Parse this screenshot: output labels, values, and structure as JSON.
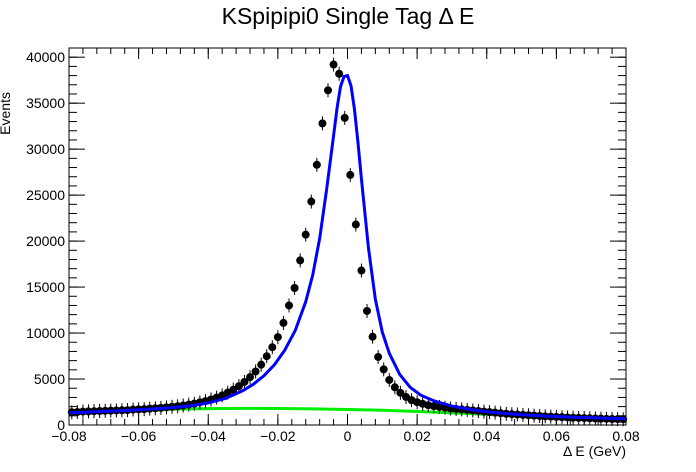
{
  "chart_data": {
    "type": "scatter",
    "title": "KSpipipi0 Single Tag Δ E",
    "xlabel": "Δ E (GeV)",
    "ylabel": "Events",
    "xlim": [
      -0.08,
      0.08
    ],
    "ylim": [
      0,
      41000
    ],
    "grid": false,
    "legend": "none",
    "x_ticks": [
      -0.08,
      -0.06,
      -0.04,
      -0.02,
      0,
      0.02,
      0.04,
      0.06,
      0.08
    ],
    "x_tick_labels": [
      "−0.08",
      "−0.06",
      "−0.04",
      "−0.02",
      "0",
      "0.02",
      "0.04",
      "0.06",
      "0.08"
    ],
    "y_ticks": [
      0,
      5000,
      10000,
      15000,
      20000,
      25000,
      30000,
      35000,
      40000
    ],
    "y_tick_labels": [
      "0",
      "5000",
      "10000",
      "15000",
      "20000",
      "25000",
      "30000",
      "35000",
      "40000"
    ],
    "series": [
      {
        "kind": "data-points",
        "color": "#000000",
        "x": [
          -0.0792,
          -0.0776,
          -0.076,
          -0.0744,
          -0.0728,
          -0.0712,
          -0.0696,
          -0.068,
          -0.0664,
          -0.0648,
          -0.0632,
          -0.0616,
          -0.06,
          -0.0584,
          -0.0568,
          -0.0552,
          -0.0536,
          -0.052,
          -0.0504,
          -0.0488,
          -0.0472,
          -0.0456,
          -0.044,
          -0.0424,
          -0.0408,
          -0.0392,
          -0.0376,
          -0.036,
          -0.0344,
          -0.0328,
          -0.0312,
          -0.0296,
          -0.028,
          -0.0264,
          -0.0248,
          -0.0232,
          -0.0216,
          -0.02,
          -0.0184,
          -0.0168,
          -0.0152,
          -0.0136,
          -0.012,
          -0.0104,
          -0.0088,
          -0.0072,
          -0.0056,
          -0.004,
          -0.0024,
          -0.0008,
          0.0008,
          0.0024,
          0.004,
          0.0056,
          0.0072,
          0.0088,
          0.0104,
          0.012,
          0.0136,
          0.0152,
          0.0168,
          0.0184,
          0.02,
          0.0216,
          0.0232,
          0.0248,
          0.0264,
          0.028,
          0.0296,
          0.0312,
          0.0328,
          0.0344,
          0.036,
          0.0376,
          0.0392,
          0.0408,
          0.0424,
          0.044,
          0.0456,
          0.0472,
          0.0488,
          0.0504,
          0.052,
          0.0536,
          0.0552,
          0.0568,
          0.0584,
          0.06,
          0.0616,
          0.0632,
          0.0648,
          0.0664,
          0.068,
          0.0696,
          0.0712,
          0.0728,
          0.0744,
          0.076,
          0.0776,
          0.0792
        ],
        "y": [
          1380,
          1420,
          1460,
          1480,
          1500,
          1520,
          1540,
          1560,
          1580,
          1600,
          1620,
          1680,
          1700,
          1720,
          1780,
          1820,
          1860,
          1920,
          1980,
          2040,
          2120,
          2220,
          2320,
          2460,
          2600,
          2780,
          2980,
          3220,
          3520,
          3840,
          4220,
          4680,
          5200,
          5820,
          6560,
          7480,
          8460,
          9560,
          11100,
          13000,
          14900,
          17900,
          20700,
          24300,
          28300,
          32800,
          36400,
          39200,
          38200,
          33400,
          27200,
          21800,
          16800,
          12400,
          9600,
          7400,
          6050,
          4900,
          4100,
          3500,
          3050,
          2700,
          2480,
          2300,
          2150,
          2050,
          1960,
          1880,
          1800,
          1750,
          1700,
          1640,
          1580,
          1520,
          1460,
          1400,
          1340,
          1280,
          1220,
          1180,
          1140,
          1100,
          1060,
          1020,
          980,
          940,
          910,
          880,
          850,
          820,
          790,
          770,
          750,
          730,
          710,
          690,
          670,
          650,
          640,
          620
        ]
      },
      {
        "kind": "fit",
        "color": "#0000ff",
        "x": [
          -0.08,
          -0.075,
          -0.07,
          -0.065,
          -0.06,
          -0.055,
          -0.05,
          -0.045,
          -0.04,
          -0.035,
          -0.03,
          -0.027,
          -0.024,
          -0.021,
          -0.018,
          -0.015,
          -0.012,
          -0.01,
          -0.008,
          -0.006,
          -0.004,
          -0.003,
          -0.002,
          -0.001,
          0,
          0.001,
          0.002,
          0.003,
          0.004,
          0.006,
          0.008,
          0.01,
          0.012,
          0.015,
          0.018,
          0.021,
          0.025,
          0.03,
          0.035,
          0.04,
          0.045,
          0.05,
          0.055,
          0.06,
          0.065,
          0.07,
          0.075,
          0.08
        ],
        "y": [
          1320,
          1400,
          1480,
          1560,
          1650,
          1760,
          1900,
          2100,
          2400,
          2900,
          3750,
          4450,
          5350,
          6550,
          8150,
          10300,
          13400,
          16300,
          20300,
          25600,
          31500,
          34500,
          36800,
          37900,
          38000,
          36900,
          34300,
          30800,
          26800,
          19300,
          13700,
          10100,
          7800,
          5500,
          4100,
          3250,
          2600,
          2050,
          1700,
          1450,
          1260,
          1120,
          1010,
          920,
          850,
          790,
          740,
          700
        ]
      },
      {
        "kind": "background",
        "color": "#00ee00",
        "x": [
          -0.08,
          -0.07,
          -0.06,
          -0.05,
          -0.04,
          -0.03,
          -0.02,
          -0.01,
          0,
          0.01,
          0.02,
          0.03,
          0.04,
          0.05,
          0.06,
          0.07,
          0.08
        ],
        "y": [
          1500,
          1580,
          1660,
          1730,
          1780,
          1800,
          1790,
          1750,
          1690,
          1600,
          1470,
          1320,
          1150,
          980,
          820,
          690,
          580
        ]
      }
    ]
  }
}
